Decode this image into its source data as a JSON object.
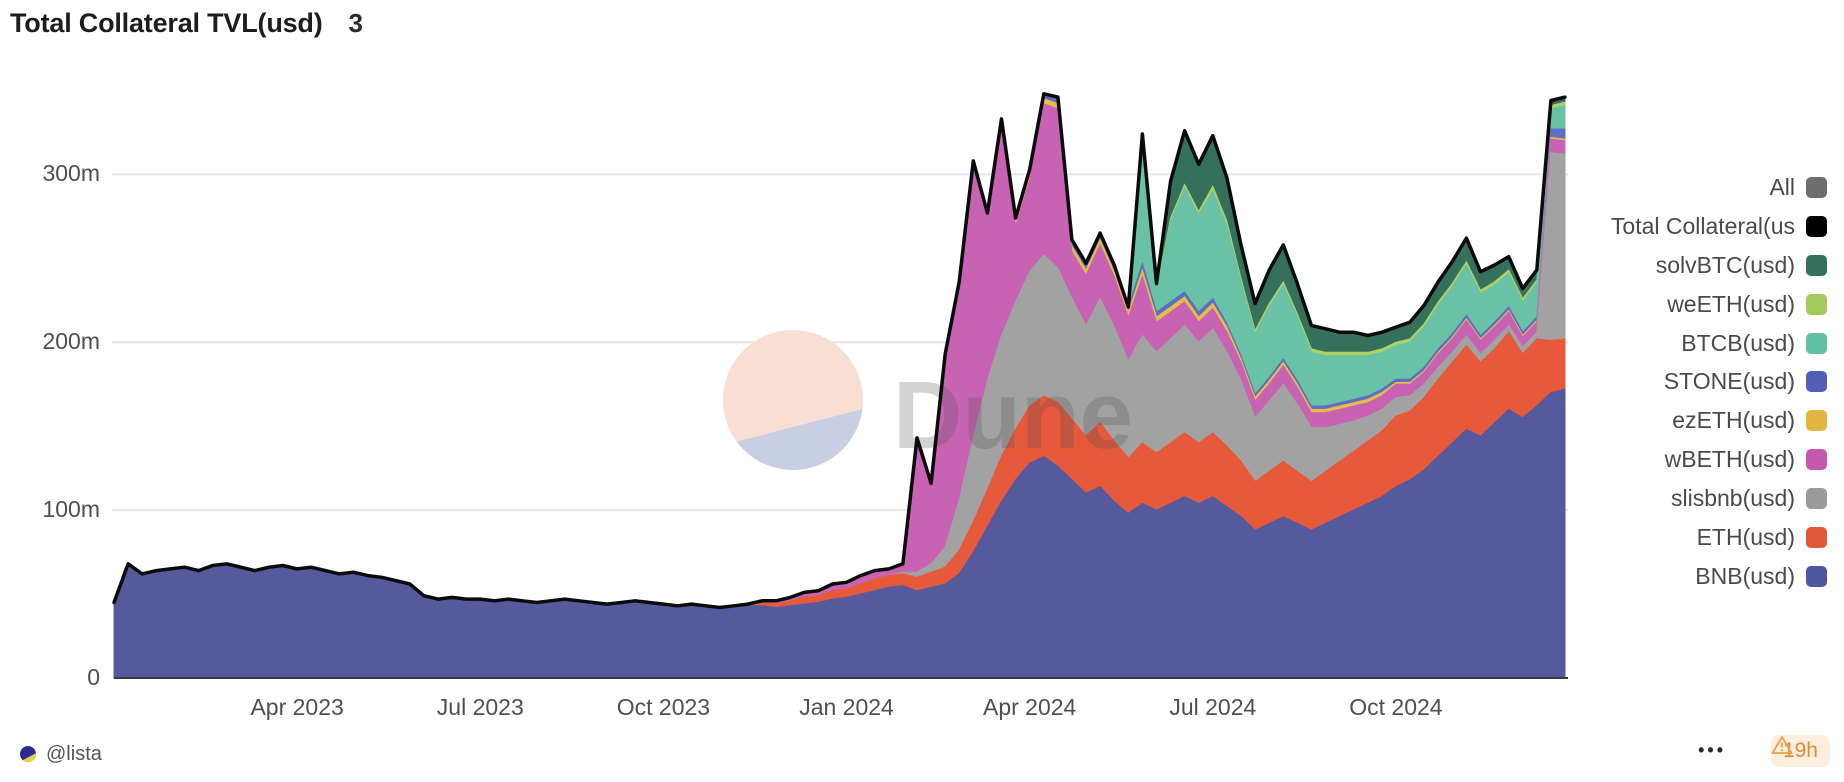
{
  "header": {
    "title": "Total Collateral TVL(usd)",
    "badge": "3"
  },
  "watermark": {
    "text": "Dune",
    "circle_top_color": "#f9ded4",
    "circle_bottom_color": "#c8cfe3"
  },
  "footer": {
    "author": "@lista",
    "menu": "•••",
    "age_badge": "19h"
  },
  "legend": [
    {
      "label": "All",
      "color": "#6e6e6e"
    },
    {
      "label": "Total Collateral(us",
      "color": "#000000"
    },
    {
      "label": "solvBTC(usd)",
      "color": "#35715c"
    },
    {
      "label": "weETH(usd)",
      "color": "#a6c95c"
    },
    {
      "label": "BTCB(usd)",
      "color": "#5fc0a2"
    },
    {
      "label": "STONE(usd)",
      "color": "#4f5fb5"
    },
    {
      "label": "ezETH(usd)",
      "color": "#e4b440"
    },
    {
      "label": "wBETH(usd)",
      "color": "#c458ae"
    },
    {
      "label": "slisbnb(usd)",
      "color": "#9b9b9b"
    },
    {
      "label": "ETH(usd)",
      "color": "#e05a3a"
    },
    {
      "label": "BNB(usd)",
      "color": "#5156a3"
    }
  ],
  "chart_data": {
    "type": "area",
    "stacked": true,
    "title": "Total Collateral TVL(usd)",
    "xlabel": "",
    "ylabel": "",
    "unit": "usd millions",
    "x_unit": "weeks since 2023-01-01",
    "n_points": 104,
    "ylim": [
      0,
      355
    ],
    "grid": "horizontal",
    "legend_position": "right",
    "x_ticks": [
      {
        "week": 13,
        "label": "Apr 2023"
      },
      {
        "week": 26,
        "label": "Jul 2023"
      },
      {
        "week": 39,
        "label": "Oct 2023"
      },
      {
        "week": 52,
        "label": "Jan 2024"
      },
      {
        "week": 65,
        "label": "Apr 2024"
      },
      {
        "week": 78,
        "label": "Jul 2024"
      },
      {
        "week": 91,
        "label": "Oct 2024"
      }
    ],
    "y_ticks": [
      {
        "value": 0,
        "label": "0"
      },
      {
        "value": 100,
        "label": "100m"
      },
      {
        "value": 200,
        "label": "200m"
      },
      {
        "value": 300,
        "label": "300m"
      }
    ],
    "total_line": {
      "label": "Total Collateral(usd)",
      "color": "#0b0b0b",
      "derived": "sum_of_series"
    },
    "series": [
      {
        "name": "BNB(usd)",
        "color": "#555a9c",
        "start_week": 0,
        "values": [
          45,
          68,
          62,
          64,
          65,
          66,
          64,
          67,
          68,
          66,
          64,
          66,
          67,
          65,
          66,
          64,
          62,
          63,
          61,
          60,
          58,
          56,
          49,
          47,
          48,
          47,
          47,
          46,
          47,
          46,
          45,
          46,
          47,
          46,
          45,
          44,
          45,
          46,
          45,
          44,
          43,
          44,
          43,
          42,
          42,
          43,
          43,
          42,
          43,
          44,
          45,
          47,
          48,
          50,
          52,
          54,
          55,
          52,
          54,
          56,
          62,
          75,
          90,
          105,
          118,
          128,
          132,
          126,
          118,
          110,
          114,
          105,
          98,
          104,
          100,
          104,
          108,
          104,
          108,
          102,
          96,
          88,
          92,
          96,
          92,
          88,
          92,
          96,
          100,
          104,
          108,
          114,
          118,
          124,
          132,
          140,
          148,
          144,
          152,
          160,
          155,
          162,
          170,
          172
        ]
      },
      {
        "name": "ETH(usd)",
        "color": "#e6593a",
        "start_week": 44,
        "values": [
          1,
          1,
          2,
          2,
          3,
          4,
          4,
          5,
          5,
          6,
          7,
          7,
          7,
          8,
          9,
          10,
          14,
          18,
          22,
          27,
          30,
          34,
          36,
          38,
          36,
          34,
          38,
          36,
          33,
          36,
          34,
          36,
          38,
          36,
          38,
          36,
          33,
          29,
          31,
          33,
          31,
          29,
          31,
          33,
          35,
          37,
          39,
          42,
          41,
          43,
          46,
          48,
          50,
          44,
          44,
          46,
          38,
          40,
          31,
          30
        ]
      },
      {
        "name": "slisbnb(usd)",
        "color": "#a2a2a2",
        "start_week": 56,
        "values": [
          1,
          3,
          5,
          12,
          30,
          50,
          65,
          72,
          76,
          80,
          84,
          80,
          72,
          66,
          74,
          68,
          58,
          64,
          60,
          62,
          64,
          60,
          62,
          56,
          48,
          38,
          42,
          46,
          40,
          32,
          26,
          22,
          18,
          15,
          13,
          11,
          9,
          8,
          7,
          6,
          6,
          5,
          5,
          4,
          4,
          4,
          112,
          110
        ]
      },
      {
        "name": "wBETH(usd)",
        "color": "#c863b4",
        "start_week": 46,
        "values": [
          1,
          2,
          2,
          3,
          3,
          4,
          4,
          5,
          5,
          4,
          5,
          80,
          48,
          115,
          130,
          165,
          100,
          125,
          45,
          55,
          90,
          95,
          28,
          30,
          32,
          30,
          26,
          35,
          18,
          16,
          14,
          12,
          12,
          12,
          11,
          10,
          10,
          11,
          10,
          9,
          9,
          9,
          9,
          8,
          8,
          8,
          7,
          7,
          8,
          8,
          9,
          8,
          8,
          8,
          6,
          6,
          8,
          8
        ]
      },
      {
        "name": "ezETH(usd)",
        "color": "#e6bc4a",
        "start_week": 63,
        "values": [
          2,
          2,
          3,
          3,
          3,
          3,
          3,
          3,
          3,
          3,
          4,
          3,
          3,
          3,
          3,
          3,
          3,
          2,
          2,
          2,
          2,
          2,
          2,
          2,
          2,
          2,
          2,
          2,
          1,
          1,
          1,
          1,
          1,
          1,
          1,
          1,
          1,
          1,
          1,
          1,
          1
        ]
      },
      {
        "name": "STONE(usd)",
        "color": "#5c6fc2",
        "start_week": 63,
        "values": [
          2,
          3,
          3,
          3,
          4,
          4,
          4,
          4,
          4,
          3,
          4,
          3,
          3,
          3,
          3,
          3,
          2,
          2,
          2,
          2,
          2,
          2,
          2,
          2,
          2,
          2,
          2,
          2,
          2,
          2,
          2,
          2,
          2,
          2,
          2,
          2,
          2,
          2,
          2,
          5,
          6
        ]
      },
      {
        "name": "BTCB(usd)",
        "color": "#6ac2a6",
        "start_week": 73,
        "values": [
          70,
          12,
          48,
          62,
          58,
          64,
          58,
          44,
          36,
          42,
          44,
          38,
          32,
          30,
          28,
          26,
          24,
          22,
          20,
          22,
          24,
          26,
          28,
          30,
          25,
          22,
          20,
          18,
          20,
          12,
          14
        ]
      },
      {
        "name": "weETH(usd)",
        "color": "#aed066",
        "start_week": 73,
        "values": [
          1,
          1,
          2,
          2,
          2,
          3,
          3,
          2,
          2,
          2,
          2,
          2,
          2,
          2,
          2,
          2,
          2,
          2,
          2,
          2,
          2,
          2,
          2,
          2,
          2,
          2,
          2,
          2,
          2,
          2,
          2
        ]
      },
      {
        "name": "solvBTC(usd)",
        "color": "#34705b",
        "start_week": 73,
        "values": [
          6,
          4,
          22,
          32,
          28,
          30,
          26,
          20,
          16,
          20,
          22,
          18,
          14,
          14,
          12,
          12,
          10,
          10,
          9,
          10,
          11,
          12,
          13,
          14,
          11,
          10,
          8,
          6,
          6,
          3,
          3
        ]
      }
    ]
  }
}
